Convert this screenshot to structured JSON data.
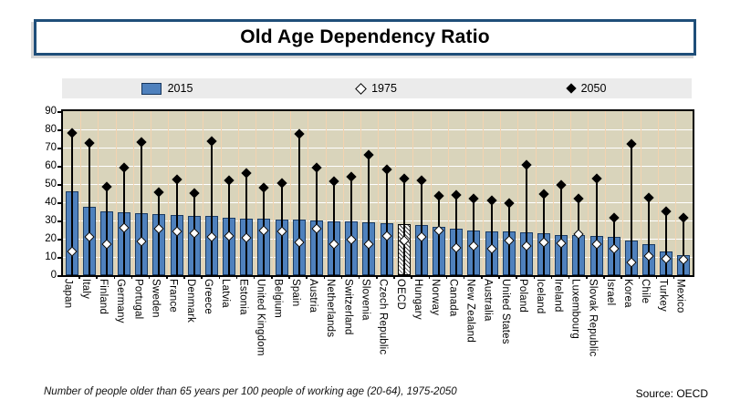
{
  "page": {
    "title": "Old Age Dependency Ratio",
    "footnote": "Number of people older than 65 years per 100 people of working age (20-64), 1975-2050",
    "source": "Source: OECD"
  },
  "legend": {
    "items": [
      {
        "label": "2015",
        "marker": "bar-swatch"
      },
      {
        "label": "1975",
        "marker": "open-diamond"
      },
      {
        "label": "2050",
        "marker": "filled-diamond"
      }
    ]
  },
  "colors": {
    "bar_fill": "#4f81bd",
    "bar_border": "#1a3a63",
    "plot_background": "#d9d4bb",
    "horizontal_grid": "#ffffff",
    "vertical_grid": "#f2d3b0",
    "legend_background": "#ebebeb",
    "title_border": "#1f4e79",
    "marker_color": "#000000"
  },
  "chart_data": {
    "type": "bar",
    "title": "Old Age Dependency Ratio",
    "xlabel": "",
    "ylabel": "",
    "ylim": [
      0,
      90
    ],
    "ytick_step": 10,
    "yticks": [
      0,
      10,
      20,
      30,
      40,
      50,
      60,
      70,
      80,
      90
    ],
    "grid": true,
    "legend_position": "top",
    "special_category": {
      "name": "OECD",
      "style": "hatched-bar"
    },
    "categories": [
      "Japan",
      "Italy",
      "Finland",
      "Germany",
      "Portugal",
      "Sweden",
      "France",
      "Denmark",
      "Greece",
      "Latvia",
      "Estonia",
      "United Kingdom",
      "Belgium",
      "Spain",
      "Austria",
      "Netherlands",
      "Switzerland",
      "Slovenia",
      "Czech Republic",
      "OECD",
      "Hungary",
      "Norway",
      "Canada",
      "New Zealand",
      "Australia",
      "United States",
      "Poland",
      "Iceland",
      "Ireland",
      "Luxembourg",
      "Slovak Republic",
      "Israel",
      "Korea",
      "Chile",
      "Turkey",
      "Mexico"
    ],
    "series": [
      {
        "name": "2015",
        "style": "bar",
        "values": [
          46,
          37.5,
          35,
          34.5,
          34,
          33.5,
          33,
          32.5,
          32.5,
          31.5,
          31,
          31,
          30.5,
          30.5,
          30,
          29.5,
          29.5,
          29,
          28.5,
          28,
          27.5,
          26.5,
          25.5,
          24.5,
          24,
          24,
          23.5,
          23,
          22,
          22,
          21.5,
          21,
          19,
          17,
          13,
          11
        ]
      },
      {
        "name": "1975",
        "style": "open-diamond",
        "values": [
          13,
          21,
          17,
          26,
          18.5,
          25.5,
          24,
          23,
          21,
          21.5,
          20.5,
          24.5,
          24,
          18,
          25.5,
          17,
          19.5,
          17,
          21.5,
          19,
          21,
          24.5,
          15,
          16,
          14.5,
          19,
          16,
          18,
          17.5,
          22.5,
          17,
          14.5,
          7,
          10.5,
          9,
          8.5
        ]
      },
      {
        "name": "2050",
        "style": "filled-diamond",
        "values": [
          78,
          72.5,
          48.5,
          59,
          73,
          45.5,
          52.5,
          45,
          73.5,
          52,
          56,
          48,
          50.5,
          77.5,
          59,
          51.5,
          54,
          66,
          58,
          53,
          52,
          43.5,
          44,
          42,
          41,
          39.5,
          60.5,
          44.5,
          49.5,
          42,
          53,
          31.5,
          72,
          42.5,
          35,
          31.5
        ]
      }
    ]
  }
}
